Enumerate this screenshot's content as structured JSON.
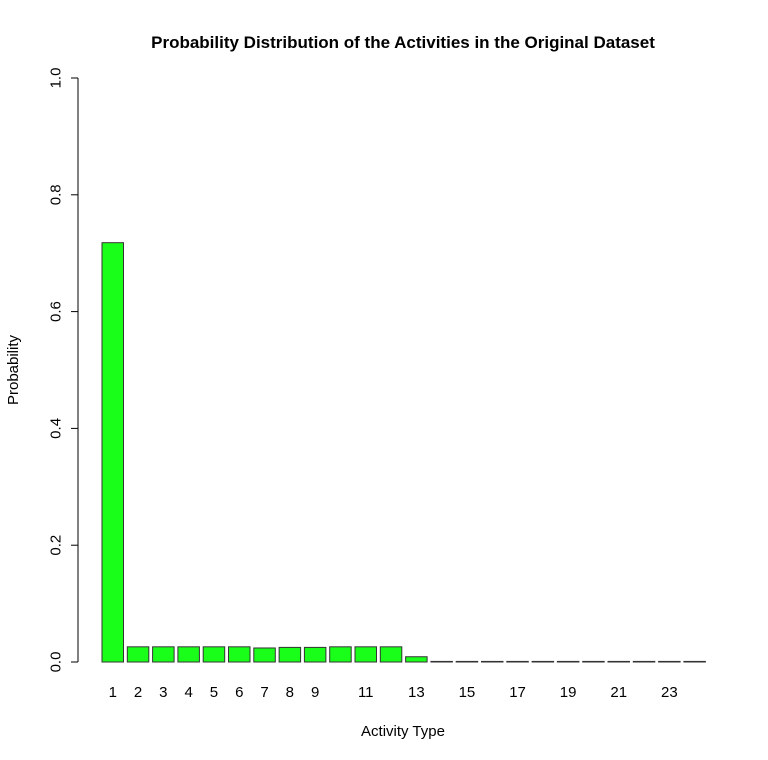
{
  "chart_data": {
    "type": "bar",
    "title": "Probability Distribution of the Activities in the Original Dataset",
    "xlabel": "Activity Type",
    "ylabel": "Probability",
    "ylim": [
      0,
      1
    ],
    "yticks": [
      "0.0",
      "0.2",
      "0.4",
      "0.6",
      "0.8",
      "1.0"
    ],
    "categories": [
      "1",
      "2",
      "3",
      "4",
      "5",
      "6",
      "7",
      "8",
      "9",
      "10",
      "11",
      "12",
      "13",
      "14",
      "15",
      "16",
      "17",
      "18",
      "19",
      "20",
      "21",
      "22",
      "23",
      "24"
    ],
    "shown_category_labels": [
      "1",
      "2",
      "3",
      "4",
      "5",
      "6",
      "7",
      "8",
      "9",
      "11",
      "13",
      "15",
      "17",
      "19",
      "21",
      "23"
    ],
    "values": [
      0.718,
      0.026,
      0.026,
      0.026,
      0.026,
      0.026,
      0.024,
      0.025,
      0.025,
      0.026,
      0.026,
      0.026,
      0.009,
      0.001,
      0.001,
      0.001,
      0.001,
      0.001,
      0.001,
      0.001,
      0.001,
      0.001,
      0.001,
      0.001
    ],
    "bar_color": "#1aff1a",
    "bar_border_color": "#333333",
    "grid": false,
    "legend": false
  }
}
